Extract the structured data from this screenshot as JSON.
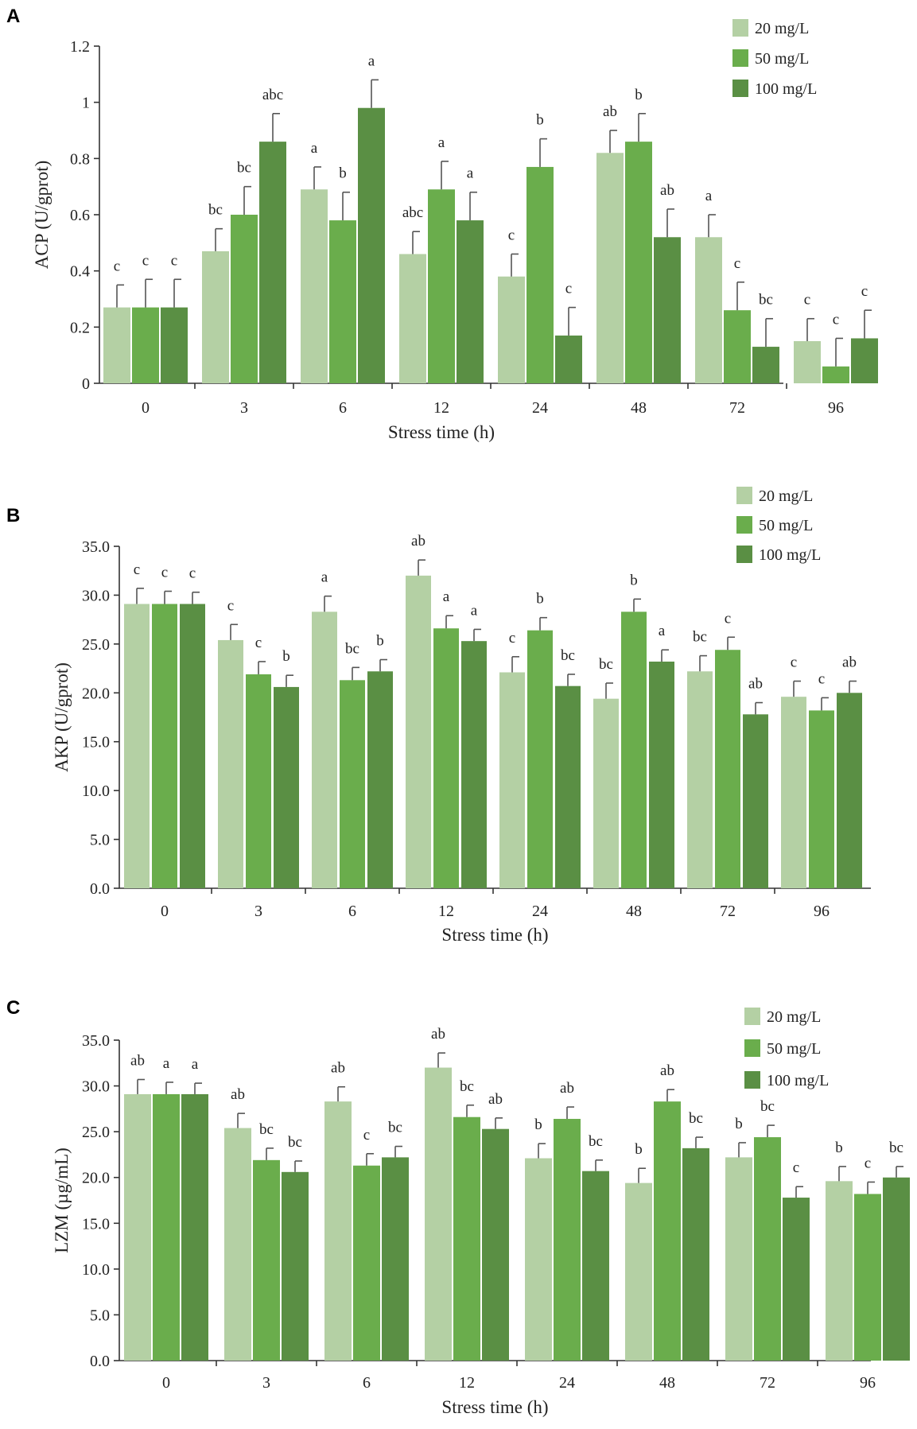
{
  "figure": {
    "colors": {
      "s20": "#b4d0a4",
      "s50": "#6aad4c",
      "s100": "#5a8f44"
    },
    "legend": [
      "20 mg/L",
      "50 mg/L",
      "100 mg/L"
    ]
  },
  "chart_data": [
    {
      "panel": "A",
      "type": "bar",
      "title": "",
      "xlabel": "Stress time (h)",
      "ylabel": "ACP (U/gprot)",
      "ylim": [
        0,
        1.2
      ],
      "yticks": [
        "0",
        "0.2",
        "0.4",
        "0.6",
        "0.8",
        "1",
        "1.2"
      ],
      "categories": [
        "0",
        "3",
        "6",
        "12",
        "24",
        "48",
        "72",
        "96"
      ],
      "series": [
        {
          "name": "20 mg/L",
          "values": [
            0.27,
            0.47,
            0.69,
            0.46,
            0.38,
            0.82,
            0.52,
            0.15
          ],
          "errors": [
            0.08,
            0.08,
            0.08,
            0.08,
            0.08,
            0.08,
            0.08,
            0.08
          ],
          "labels": [
            "c",
            "bc",
            "a",
            "abc",
            "c",
            "ab",
            "a",
            "c"
          ]
        },
        {
          "name": "50 mg/L",
          "values": [
            0.27,
            0.6,
            0.58,
            0.69,
            0.77,
            0.86,
            0.26,
            0.06
          ],
          "errors": [
            0.1,
            0.1,
            0.1,
            0.1,
            0.1,
            0.1,
            0.1,
            0.1
          ],
          "labels": [
            "c",
            "bc",
            "b",
            "a",
            "b",
            "b",
            "c",
            "c"
          ]
        },
        {
          "name": "100 mg/L",
          "values": [
            0.27,
            0.86,
            0.98,
            0.58,
            0.17,
            0.52,
            0.13,
            0.16
          ],
          "errors": [
            0.1,
            0.1,
            0.1,
            0.1,
            0.1,
            0.1,
            0.1,
            0.1
          ],
          "labels": [
            "c",
            "abc",
            "a",
            "a",
            "c",
            "ab",
            "bc",
            "c"
          ]
        }
      ]
    },
    {
      "panel": "B",
      "type": "bar",
      "title": "",
      "xlabel": "Stress time (h)",
      "ylabel": "AKP  (U/gprot)",
      "ylim": [
        0,
        35
      ],
      "yticks": [
        "0.0",
        "5.0",
        "10.0",
        "15.0",
        "20.0",
        "25.0",
        "30.0",
        "35.0"
      ],
      "categories": [
        "0",
        "3",
        "6",
        "12",
        "24",
        "48",
        "72",
        "96"
      ],
      "series": [
        {
          "name": "20 mg/L",
          "values": [
            29.1,
            25.4,
            28.3,
            32.0,
            22.1,
            19.4,
            22.2,
            19.6
          ],
          "errors": [
            1.6,
            1.6,
            1.6,
            1.6,
            1.6,
            1.6,
            1.6,
            1.6
          ],
          "labels": [
            "c",
            "c",
            "a",
            "ab",
            "c",
            "bc",
            "bc",
            "c"
          ]
        },
        {
          "name": "50 mg/L",
          "values": [
            29.1,
            21.9,
            21.3,
            26.6,
            26.4,
            28.3,
            24.4,
            18.2
          ],
          "errors": [
            1.3,
            1.3,
            1.3,
            1.3,
            1.3,
            1.3,
            1.3,
            1.3
          ],
          "labels": [
            "c",
            "c",
            "bc",
            "a",
            "b",
            "b",
            "c",
            "c"
          ]
        },
        {
          "name": "100 mg/L",
          "values": [
            29.1,
            20.6,
            22.2,
            25.3,
            20.7,
            23.2,
            17.8,
            20.0
          ],
          "errors": [
            1.2,
            1.2,
            1.2,
            1.2,
            1.2,
            1.2,
            1.2,
            1.2
          ],
          "labels": [
            "c",
            "b",
            "b",
            "a",
            "bc",
            "a",
            "ab",
            "ab"
          ]
        }
      ]
    },
    {
      "panel": "C",
      "type": "bar",
      "title": "",
      "xlabel": "Stress time (h)",
      "ylabel": "LZM (µg/mL)",
      "ylim": [
        0,
        35
      ],
      "yticks": [
        "0.0",
        "5.0",
        "10.0",
        "15.0",
        "20.0",
        "25.0",
        "30.0",
        "35.0"
      ],
      "categories": [
        "0",
        "3",
        "6",
        "12",
        "24",
        "48",
        "72",
        "96"
      ],
      "series": [
        {
          "name": "20 mg/L",
          "values": [
            29.1,
            25.4,
            28.3,
            32.0,
            22.1,
            19.4,
            22.2,
            19.6
          ],
          "errors": [
            1.6,
            1.6,
            1.6,
            1.6,
            1.6,
            1.6,
            1.6,
            1.6
          ],
          "labels": [
            "ab",
            "ab",
            "ab",
            "ab",
            "b",
            "b",
            "b",
            "b"
          ]
        },
        {
          "name": "50 mg/L",
          "values": [
            29.1,
            21.9,
            21.3,
            26.6,
            26.4,
            28.3,
            24.4,
            18.2
          ],
          "errors": [
            1.3,
            1.3,
            1.3,
            1.3,
            1.3,
            1.3,
            1.3,
            1.3
          ],
          "labels": [
            "a",
            "bc",
            "c",
            "bc",
            "ab",
            "ab",
            "bc",
            "c"
          ]
        },
        {
          "name": "100 mg/L",
          "values": [
            29.1,
            20.6,
            22.2,
            25.3,
            20.7,
            23.2,
            17.8,
            20.0
          ],
          "errors": [
            1.2,
            1.2,
            1.2,
            1.2,
            1.2,
            1.2,
            1.2,
            1.2
          ],
          "labels": [
            "a",
            "bc",
            "bc",
            "ab",
            "bc",
            "bc",
            "c",
            "bc"
          ]
        }
      ]
    }
  ]
}
